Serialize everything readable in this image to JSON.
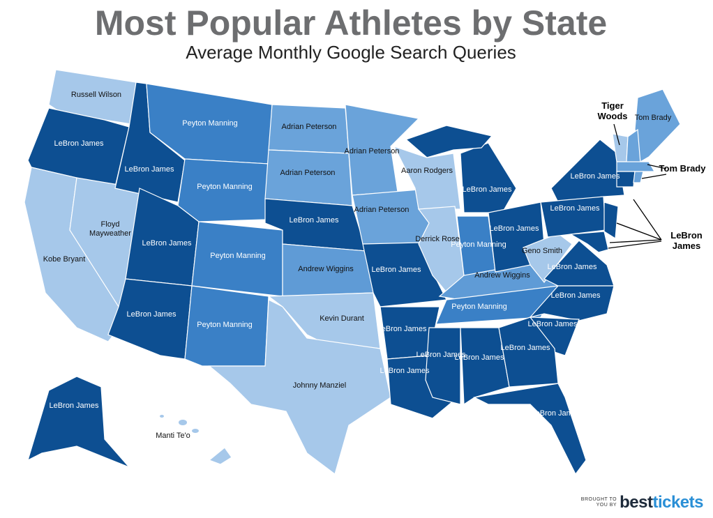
{
  "header": {
    "title": "Most Popular Athletes by State",
    "subtitle": "Average Monthly Google Search Queries"
  },
  "regions": [
    {
      "label": "Russell Wilson",
      "color": "#a6c8ea"
    },
    {
      "label": "LeBron James",
      "color": "#0d4f92"
    },
    {
      "label": "Kobe Bryant",
      "color": "#a6c8ea"
    },
    {
      "label": "Floyd Mayweather",
      "color": "#a6c8ea"
    },
    {
      "label": "LeBron James",
      "color": "#0d4f92"
    },
    {
      "label": "Peyton Manning",
      "color": "#3a80c6"
    },
    {
      "label": "Peyton Manning",
      "color": "#3a80c6"
    },
    {
      "label": "LeBron James",
      "color": "#0d4f92"
    },
    {
      "label": "LeBron James",
      "color": "#0d4f92"
    },
    {
      "label": "Peyton Manning",
      "color": "#3a80c6"
    },
    {
      "label": "Peyton Manning",
      "color": "#3a80c6"
    },
    {
      "label": "Adrian Peterson",
      "color": "#6aa3da"
    },
    {
      "label": "Adrian Peterson",
      "color": "#6aa3da"
    },
    {
      "label": "LeBron James",
      "color": "#0d4f92"
    },
    {
      "label": "Andrew Wiggins",
      "color": "#5f9bd6"
    },
    {
      "label": "Kevin Durant",
      "color": "#a6c8ea"
    },
    {
      "label": "Johnny Manziel",
      "color": "#a6c8ea"
    },
    {
      "label": "Adrian Peterson",
      "color": "#6aa3da"
    },
    {
      "label": "Adrian Peterson",
      "color": "#6aa3da"
    },
    {
      "label": "LeBron James",
      "color": "#0d4f92"
    },
    {
      "label": "LeBron James",
      "color": "#0d4f92"
    },
    {
      "label": "LeBron James",
      "color": "#0d4f92"
    },
    {
      "label": "Aaron Rodgers",
      "color": "#a6c8ea"
    },
    {
      "label": "Derrick Rose",
      "color": "#a6c8ea"
    },
    {
      "label": "LeBron James",
      "color": "#0d4f92"
    },
    {
      "label": "LeBron James",
      "color": "#0d4f92"
    },
    {
      "label": "Peyton Manning",
      "color": "#3a80c6"
    },
    {
      "label": "Andrew Wiggins",
      "color": "#5f9bd6"
    },
    {
      "label": "Peyton Manning",
      "color": "#3a80c6"
    },
    {
      "label": "LeBron James",
      "color": "#0d4f92"
    },
    {
      "label": "LeBron James",
      "color": "#0d4f92"
    },
    {
      "label": "LeBron James",
      "color": "#0d4f92"
    },
    {
      "label": "Geno Smith",
      "color": "#a6c8ea"
    },
    {
      "label": "LeBron James",
      "color": "#0d4f92"
    },
    {
      "label": "LeBron James",
      "color": "#0d4f92"
    },
    {
      "label": "LeBron James",
      "color": "#0d4f92"
    },
    {
      "label": "LeBron James",
      "color": "#0d4f92"
    },
    {
      "label": "LeBron James",
      "color": "#0d4f92"
    },
    {
      "label": "LeBron James",
      "color": "#0d4f92"
    },
    {
      "label": "Tom Brady",
      "color": "#6aa3da"
    },
    {
      "label": "LeBron James",
      "color": "#0d4f92"
    },
    {
      "label": "Manti Te'o",
      "color": "#a6c8ea"
    }
  ],
  "callouts": [
    "Tiger Woods",
    "Tom Brady",
    "LeBron James"
  ],
  "footer": {
    "note": "BROUGHT TO YOU BY",
    "brand": [
      "best",
      "tickets"
    ]
  }
}
